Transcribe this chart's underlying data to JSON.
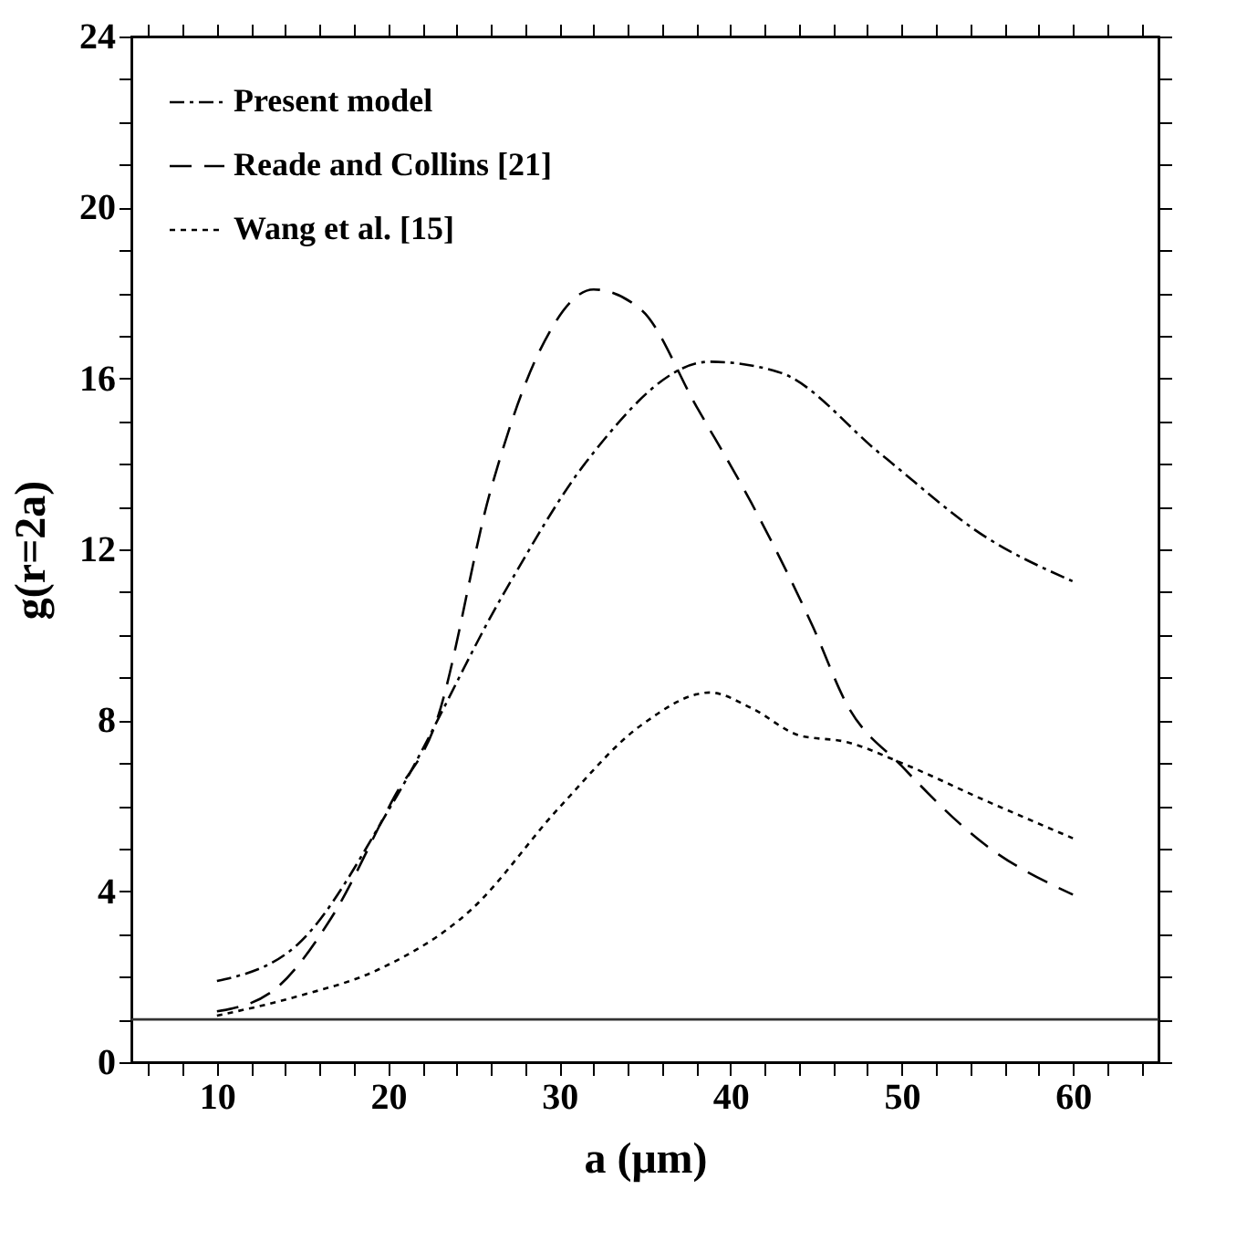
{
  "chart_data": {
    "type": "line",
    "xlabel": "a  (μm)",
    "ylabel": "g(r=2a)",
    "xlim": [
      5,
      65
    ],
    "ylim": [
      0,
      24
    ],
    "xticks": [
      {
        "value": 6,
        "label": null
      },
      {
        "value": 8,
        "label": null
      },
      10,
      {
        "value": 12,
        "label": null
      },
      {
        "value": 14,
        "label": null
      },
      {
        "value": 16,
        "label": null
      },
      {
        "value": 18,
        "label": null
      },
      20,
      {
        "value": 22,
        "label": null
      },
      {
        "value": 24,
        "label": null
      },
      {
        "value": 26,
        "label": null
      },
      {
        "value": 28,
        "label": null
      },
      30,
      {
        "value": 32,
        "label": null
      },
      {
        "value": 34,
        "label": null
      },
      {
        "value": 36,
        "label": null
      },
      {
        "value": 38,
        "label": null
      },
      40,
      {
        "value": 42,
        "label": null
      },
      {
        "value": 44,
        "label": null
      },
      {
        "value": 46,
        "label": null
      },
      {
        "value": 48,
        "label": null
      },
      50,
      {
        "value": 52,
        "label": null
      },
      {
        "value": 54,
        "label": null
      },
      {
        "value": 56,
        "label": null
      },
      {
        "value": 58,
        "label": null
      },
      60,
      {
        "value": 62,
        "label": null
      },
      {
        "value": 64,
        "label": null
      }
    ],
    "yticks": [
      0,
      {
        "value": 1,
        "label": null
      },
      {
        "value": 2,
        "label": null
      },
      {
        "value": 3,
        "label": null
      },
      4,
      {
        "value": 5,
        "label": null
      },
      {
        "value": 6,
        "label": null
      },
      {
        "value": 7,
        "label": null
      },
      8,
      {
        "value": 9,
        "label": null
      },
      {
        "value": 10,
        "label": null
      },
      {
        "value": 11,
        "label": null
      },
      12,
      {
        "value": 13,
        "label": null
      },
      {
        "value": 14,
        "label": null
      },
      {
        "value": 15,
        "label": null
      },
      16,
      {
        "value": 17,
        "label": null
      },
      {
        "value": 18,
        "label": null
      },
      {
        "value": 19,
        "label": null
      },
      20,
      {
        "value": 21,
        "label": null
      },
      {
        "value": 22,
        "label": null
      },
      {
        "value": 23,
        "label": null
      },
      24
    ],
    "grid": false,
    "legend": "top left",
    "marker": "none",
    "ref_lines": [
      {
        "axis": "y",
        "value": 1,
        "color": "#333333",
        "line_style": "solid"
      }
    ],
    "series": [
      {
        "name": "Present model",
        "color": "#000000",
        "line_style": "dashdot",
        "x": [
          10,
          14.7,
          20.35,
          26.8,
          31.6,
          38.8,
          42.8,
          48.8,
          54.9,
          60
        ],
        "values": [
          1.9,
          2.75,
          6.12,
          11.0,
          14.06,
          16.39,
          16.15,
          14.22,
          12.29,
          11.25
        ]
      },
      {
        "name": "Reade and Collins [21]",
        "color": "#000000",
        "line_style": "dashed",
        "x": [
          10,
          13.1,
          16.7,
          20.35,
          22.8,
          26.0,
          28.8,
          32.0,
          34.8,
          38.0,
          41.2,
          44.8,
          46.8,
          50.0,
          54.9,
          60
        ],
        "values": [
          1.19,
          1.62,
          3.39,
          6.2,
          7.95,
          13.4,
          16.6,
          18.08,
          17.6,
          15.35,
          13.1,
          10.2,
          8.37,
          6.93,
          5.08,
          3.92
        ]
      },
      {
        "name": "Wang et al. [15]",
        "color": "#000000",
        "line_style": "dotted",
        "x": [
          10,
          14.7,
          19.55,
          24.8,
          30.0,
          34.8,
          38.8,
          41.2,
          44.0,
          46.8,
          50.0,
          54.9,
          60
        ],
        "values": [
          1.09,
          1.54,
          2.19,
          3.55,
          5.96,
          7.89,
          8.65,
          8.29,
          7.65,
          7.49,
          7.0,
          6.12,
          5.24
        ]
      }
    ]
  }
}
